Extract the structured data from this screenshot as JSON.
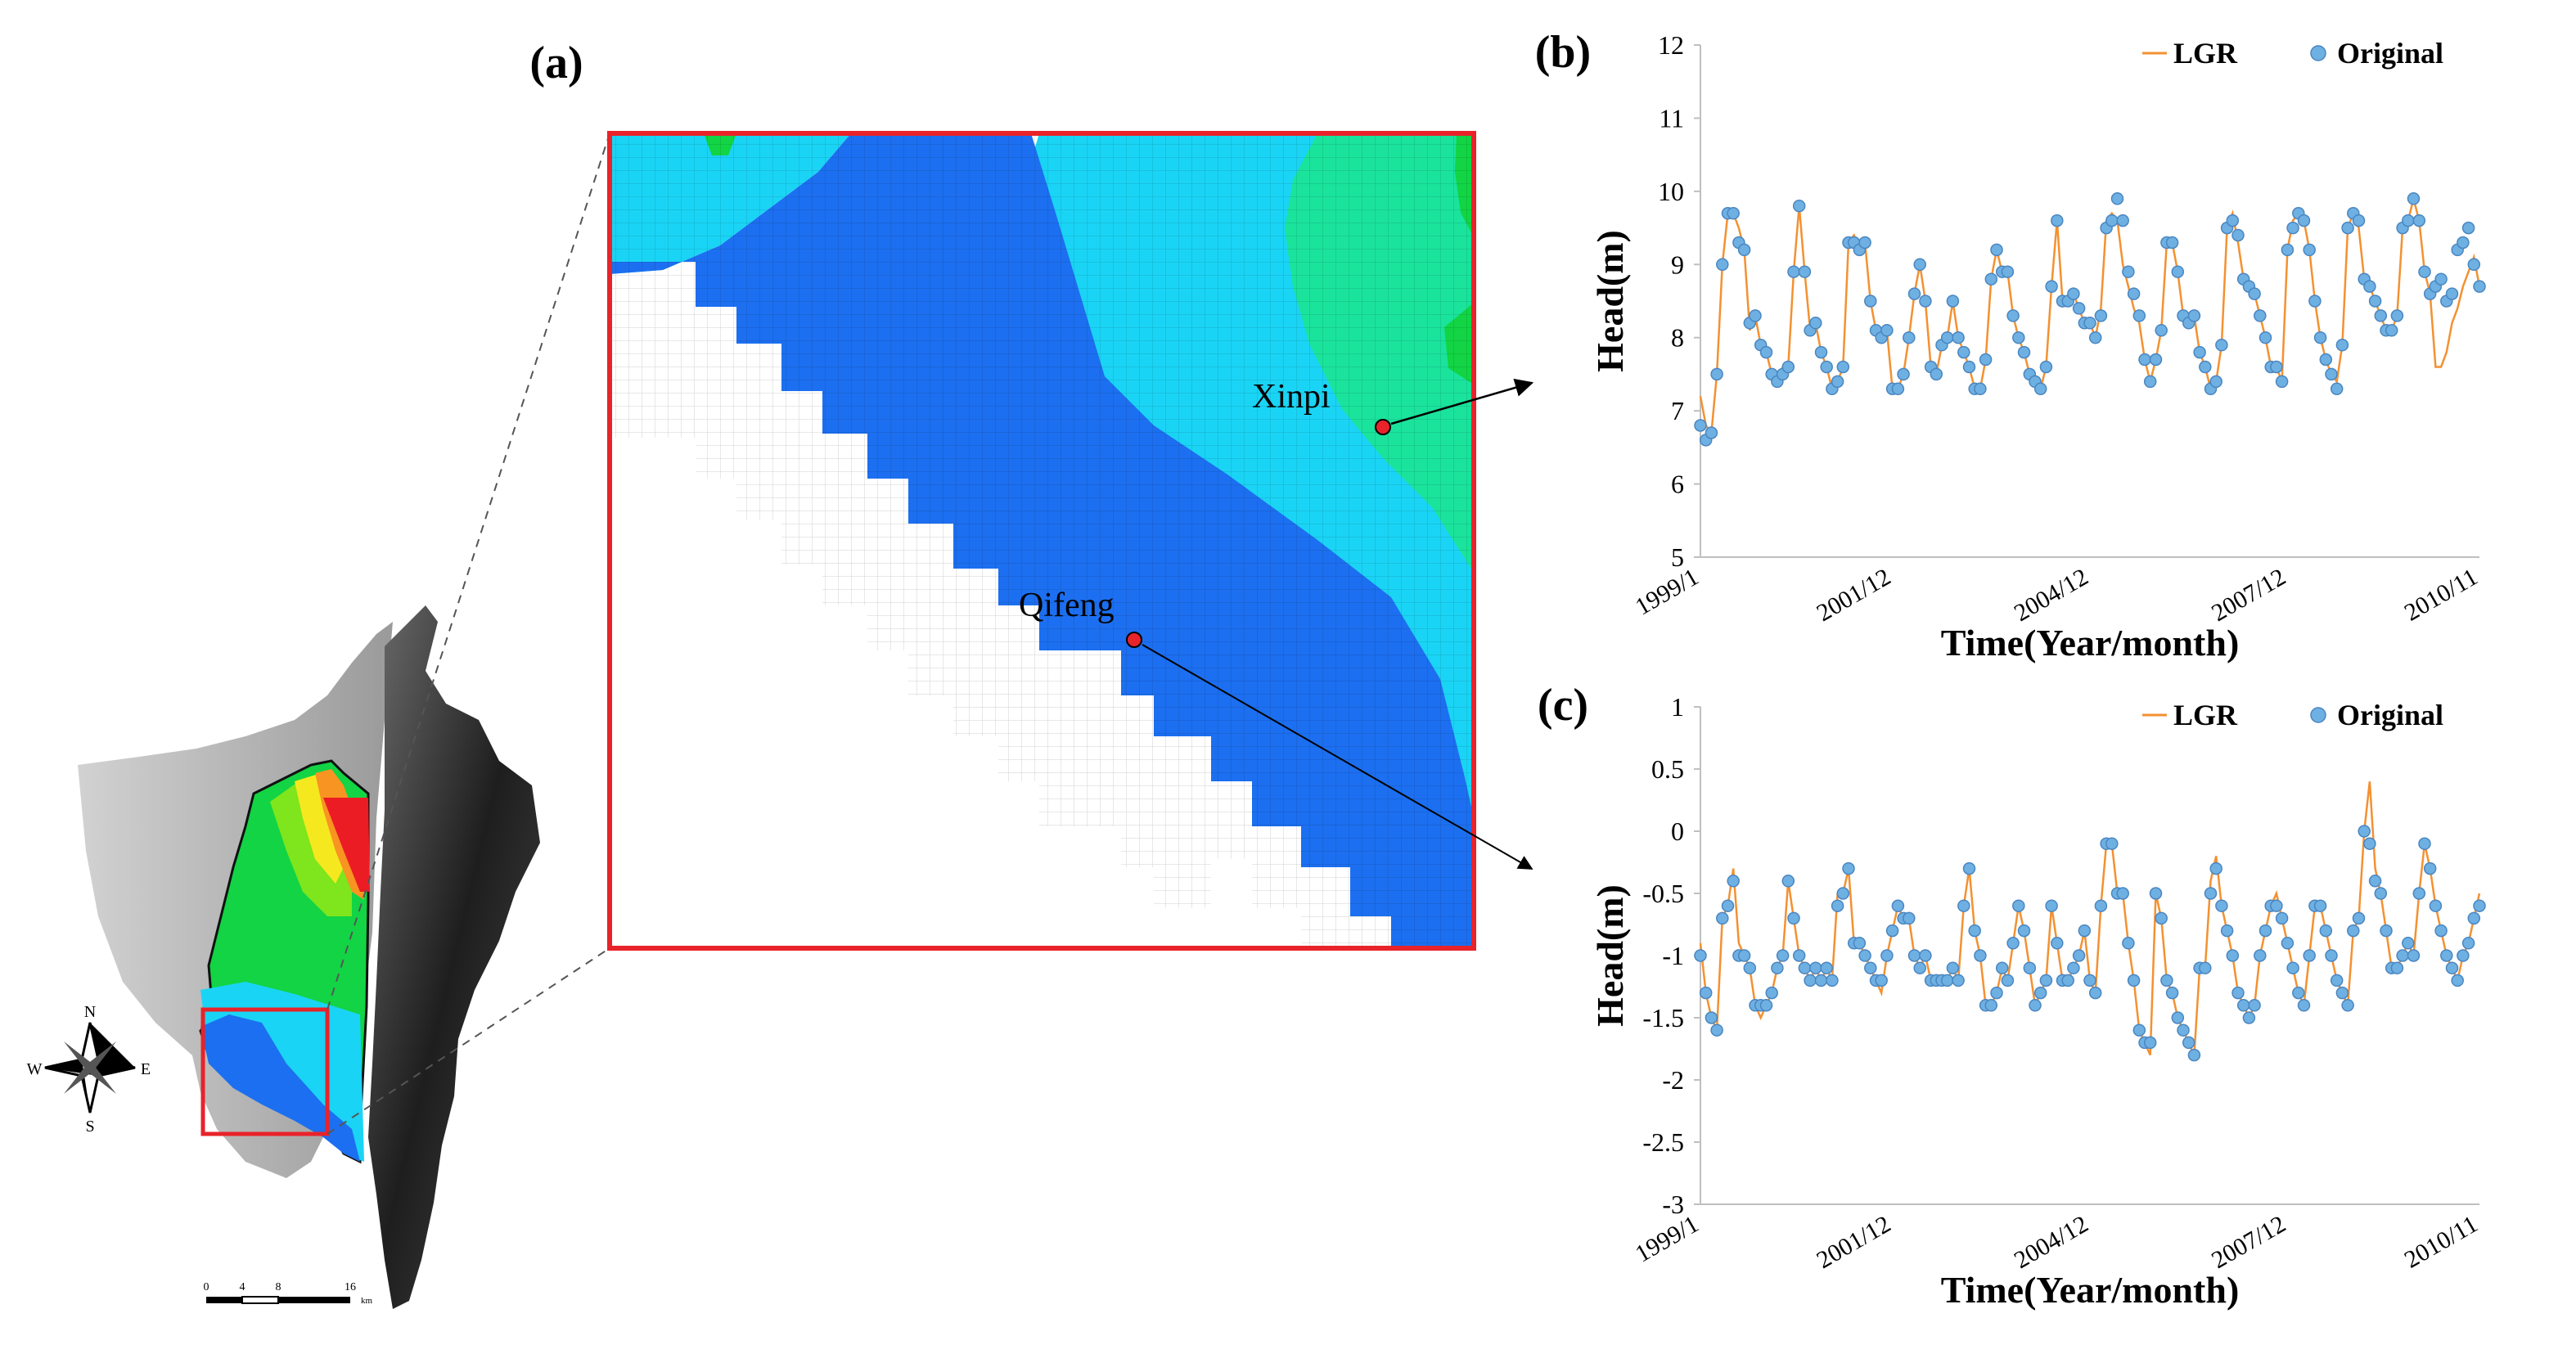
{
  "panels": {
    "a_label": "(a)",
    "b_label": "(b)",
    "c_label": "(c)"
  },
  "map": {
    "compass": {
      "n": "N",
      "s": "S",
      "e": "E",
      "w": "W"
    },
    "scale_ticks": [
      "0",
      "4",
      "8",
      "16"
    ],
    "scale_unit": "km",
    "stations": [
      {
        "name": "Xinpi",
        "target_panel": "b"
      },
      {
        "name": "Qifeng",
        "target_panel": "c"
      }
    ],
    "colors": {
      "frame": "#e8232a",
      "deep_blue": "#1c6ff0",
      "cyan": "#1ad4f5",
      "teal_green": "#1ae39c",
      "green": "#12d444",
      "lime": "#7fe51c",
      "yellow": "#f6e81f",
      "orange": "#f89422",
      "red": "#ec1c24",
      "station_dot": "#e8232a",
      "terrain_light": "#c4c4c4",
      "terrain_dark": "#2a2a2a"
    }
  },
  "chart_data": [
    {
      "panel": "b",
      "station": "Xinpi",
      "type": "line",
      "title": "",
      "xlabel": "Time(Year/month)",
      "ylabel": "Head(m)",
      "ylim": [
        5,
        12
      ],
      "yticks": [
        "5",
        "6",
        "7",
        "8",
        "9",
        "10",
        "11",
        "12"
      ],
      "xticks": [
        "1999/1",
        "2001/12",
        "2004/12",
        "2007/12",
        "2010/11"
      ],
      "xtick_index": [
        0,
        35,
        71,
        107,
        142
      ],
      "n_months": 143,
      "legend_position": "top-right",
      "series": [
        {
          "name": "LGR",
          "style": "line",
          "color": "#f39131",
          "values": [
            7.2,
            6.8,
            6.7,
            7.5,
            9.0,
            9.7,
            9.7,
            9.5,
            9.2,
            8.1,
            8.3,
            7.9,
            7.8,
            7.5,
            7.4,
            7.6,
            7.6,
            8.9,
            9.8,
            8.9,
            8.1,
            8.2,
            7.8,
            7.6,
            7.3,
            7.4,
            7.6,
            9.3,
            9.4,
            9.2,
            9.3,
            8.5,
            8.1,
            8.0,
            8.1,
            7.3,
            7.3,
            7.5,
            8.0,
            8.6,
            9.0,
            8.5,
            7.6,
            7.5,
            7.9,
            8.0,
            8.5,
            8.0,
            7.8,
            7.6,
            7.3,
            7.3,
            7.7,
            8.8,
            9.2,
            8.9,
            8.9,
            8.3,
            8.0,
            7.8,
            7.5,
            7.4,
            7.3,
            7.6,
            8.7,
            9.6,
            8.5,
            8.5,
            8.6,
            8.4,
            8.2,
            8.2,
            8.0,
            8.4,
            9.6,
            9.7,
            9.6,
            9.0,
            8.7,
            8.4,
            8.2,
            7.7,
            7.4,
            7.7,
            8.1,
            9.3,
            9.3,
            8.9,
            8.3,
            8.2,
            8.3,
            7.8,
            7.6,
            7.3,
            7.4,
            7.9,
            9.5,
            9.7,
            9.3,
            8.8,
            8.7,
            8.6,
            8.3,
            8.0,
            7.6,
            7.6,
            7.4,
            9.2,
            9.6,
            9.7,
            9.6,
            9.2,
            8.5,
            8.0,
            7.7,
            7.5,
            7.4,
            7.9,
            9.5,
            9.7,
            9.5,
            8.8,
            8.7,
            8.5,
            8.3,
            8.1,
            8.1,
            8.3,
            9.5,
            9.6,
            9.9,
            9.6,
            8.9,
            8.6,
            7.6,
            7.6,
            7.8,
            8.2,
            8.4,
            8.7,
            8.9,
            9.1,
            8.7
          ],
          "note": "approximate, read from plot"
        },
        {
          "name": "Original",
          "style": "points",
          "color": "#6fb0e3",
          "values": [
            6.8,
            6.6,
            6.7,
            7.5,
            9.0,
            9.7,
            9.7,
            9.3,
            9.2,
            8.2,
            8.3,
            7.9,
            7.8,
            7.5,
            7.4,
            7.5,
            7.6,
            8.9,
            9.8,
            8.9,
            8.1,
            8.2,
            7.8,
            7.6,
            7.3,
            7.4,
            7.6,
            9.3,
            9.3,
            9.2,
            9.3,
            8.5,
            8.1,
            8.0,
            8.1,
            7.3,
            7.3,
            7.5,
            8.0,
            8.6,
            9.0,
            8.5,
            7.6,
            7.5,
            7.9,
            8.0,
            8.5,
            8.0,
            7.8,
            7.6,
            7.3,
            7.3,
            7.7,
            8.8,
            9.2,
            8.9,
            8.9,
            8.3,
            8.0,
            7.8,
            7.5,
            7.4,
            7.3,
            7.6,
            8.7,
            9.6,
            8.5,
            8.5,
            8.6,
            8.4,
            8.2,
            8.2,
            8.0,
            8.3,
            9.5,
            9.6,
            9.9,
            9.6,
            8.9,
            8.6,
            8.3,
            7.7,
            7.4,
            7.7,
            8.1,
            9.3,
            9.3,
            8.9,
            8.3,
            8.2,
            8.3,
            7.8,
            7.6,
            7.3,
            7.4,
            7.9,
            9.5,
            9.6,
            9.4,
            8.8,
            8.7,
            8.6,
            8.3,
            8.0,
            7.6,
            7.6,
            7.4,
            9.2,
            9.5,
            9.7,
            9.6,
            9.2,
            8.5,
            8.0,
            7.7,
            7.5,
            7.3,
            7.9,
            9.5,
            9.7,
            9.6,
            8.8,
            8.7,
            8.5,
            8.3,
            8.1,
            8.1,
            8.3,
            9.5,
            9.6,
            9.9,
            9.6,
            8.9,
            8.6,
            8.7,
            8.8,
            8.5,
            8.6,
            9.2,
            9.3,
            9.5,
            9.0,
            8.7
          ],
          "note": "approximate, read from plot"
        }
      ]
    },
    {
      "panel": "c",
      "station": "Qifeng",
      "type": "line",
      "title": "",
      "xlabel": "Time(Year/month)",
      "ylabel": "Head(m)",
      "ylim": [
        -3,
        1
      ],
      "yticks": [
        "-3",
        "-2.5",
        "-2",
        "-1.5",
        "-1",
        "-0.5",
        "0",
        "0.5",
        "1"
      ],
      "xticks": [
        "1999/1",
        "2001/12",
        "2004/12",
        "2007/12",
        "2010/11"
      ],
      "xtick_index": [
        0,
        35,
        71,
        107,
        142
      ],
      "n_months": 143,
      "legend_position": "top-right",
      "series": [
        {
          "name": "LGR",
          "style": "line",
          "color": "#f39131",
          "values": [
            -0.9,
            -1.3,
            -1.5,
            -1.6,
            -0.7,
            -0.6,
            -0.3,
            -0.9,
            -1.0,
            -1.1,
            -1.4,
            -1.5,
            -1.4,
            -1.3,
            -1.1,
            -1.0,
            -0.4,
            -0.7,
            -1.0,
            -1.1,
            -1.2,
            -1.1,
            -1.2,
            -1.1,
            -1.2,
            -0.5,
            -0.5,
            -0.3,
            -0.9,
            -0.9,
            -1.0,
            -1.1,
            -1.2,
            -1.3,
            -1.0,
            -0.8,
            -0.6,
            -0.7,
            -0.7,
            -1.0,
            -1.1,
            -1.0,
            -1.2,
            -1.2,
            -1.2,
            -1.2,
            -1.1,
            -1.2,
            -0.6,
            -0.3,
            -0.8,
            -1.0,
            -1.4,
            -1.4,
            -1.3,
            -1.1,
            -1.2,
            -0.9,
            -0.6,
            -0.8,
            -1.1,
            -1.4,
            -1.3,
            -1.2,
            -0.6,
            -0.9,
            -1.2,
            -1.2,
            -1.1,
            -1.0,
            -0.8,
            -1.2,
            -1.3,
            -0.6,
            -0.1,
            -0.1,
            -0.5,
            -0.5,
            -0.9,
            -1.2,
            -1.6,
            -1.7,
            -1.8,
            -0.5,
            -0.7,
            -1.2,
            -1.3,
            -1.5,
            -1.6,
            -1.7,
            -1.8,
            -1.1,
            -1.1,
            -0.4,
            -0.2,
            -0.6,
            -0.8,
            -1.0,
            -1.3,
            -1.4,
            -1.5,
            -1.4,
            -1.0,
            -0.8,
            -0.6,
            -0.5,
            -0.7,
            -0.9,
            -1.1,
            -1.3,
            -1.4,
            -1.0,
            -0.6,
            -0.6,
            -0.8,
            -1.0,
            -1.2,
            -1.3,
            -1.4,
            -0.8,
            -0.7,
            0.0,
            0.4,
            -0.3,
            -0.5,
            -0.8,
            -1.1,
            -1.1,
            -1.0,
            -0.9,
            -1.0,
            -0.5,
            -0.1,
            -0.3,
            -0.6,
            -0.8,
            -1.0,
            -1.1,
            -1.2,
            -1.0,
            -0.9,
            -0.7,
            -0.5
          ],
          "note": "approximate, read from plot"
        },
        {
          "name": "Original",
          "style": "points",
          "color": "#6fb0e3",
          "values": [
            -1.0,
            -1.3,
            -1.5,
            -1.6,
            -0.7,
            -0.6,
            -0.4,
            -1.0,
            -1.0,
            -1.1,
            -1.4,
            -1.4,
            -1.4,
            -1.3,
            -1.1,
            -1.0,
            -0.4,
            -0.7,
            -1.0,
            -1.1,
            -1.2,
            -1.1,
            -1.2,
            -1.1,
            -1.2,
            -0.6,
            -0.5,
            -0.3,
            -0.9,
            -0.9,
            -1.0,
            -1.1,
            -1.2,
            -1.2,
            -1.0,
            -0.8,
            -0.6,
            -0.7,
            -0.7,
            -1.0,
            -1.1,
            -1.0,
            -1.2,
            -1.2,
            -1.2,
            -1.2,
            -1.1,
            -1.2,
            -0.6,
            -0.3,
            -0.8,
            -1.0,
            -1.4,
            -1.4,
            -1.3,
            -1.1,
            -1.2,
            -0.9,
            -0.6,
            -0.8,
            -1.1,
            -1.4,
            -1.3,
            -1.2,
            -0.6,
            -0.9,
            -1.2,
            -1.2,
            -1.1,
            -1.0,
            -0.8,
            -1.2,
            -1.3,
            -0.6,
            -0.1,
            -0.1,
            -0.5,
            -0.5,
            -0.9,
            -1.2,
            -1.6,
            -1.7,
            -1.7,
            -0.5,
            -0.7,
            -1.2,
            -1.3,
            -1.5,
            -1.6,
            -1.7,
            -1.8,
            -1.1,
            -1.1,
            -0.5,
            -0.3,
            -0.6,
            -0.8,
            -1.0,
            -1.3,
            -1.4,
            -1.5,
            -1.4,
            -1.0,
            -0.8,
            -0.6,
            -0.6,
            -0.7,
            -0.9,
            -1.1,
            -1.3,
            -1.4,
            -1.0,
            -0.6,
            -0.6,
            -0.8,
            -1.0,
            -1.2,
            -1.3,
            -1.4,
            -0.8,
            -0.7,
            0.0,
            -0.1,
            -0.4,
            -0.5,
            -0.8,
            -1.1,
            -1.1,
            -1.0,
            -0.9,
            -1.0,
            -0.5,
            -0.1,
            -0.3,
            -0.6,
            -0.8,
            -1.0,
            -1.1,
            -1.2,
            -1.0,
            -0.9,
            -0.7,
            -0.6
          ],
          "note": "approximate, read from plot"
        }
      ]
    }
  ]
}
